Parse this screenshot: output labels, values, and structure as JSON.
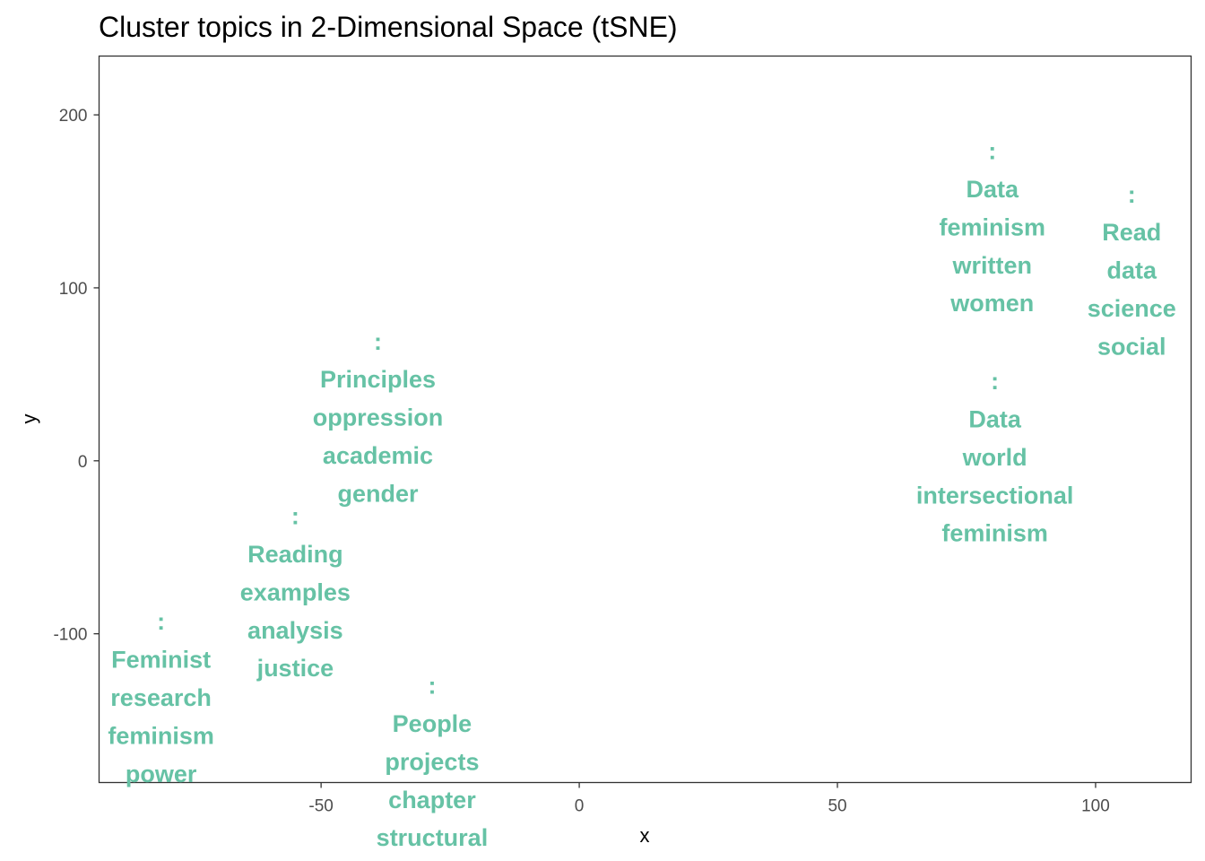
{
  "chart_data": {
    "type": "scatter",
    "title": "Cluster topics in 2-Dimensional Space (tSNE)",
    "xlabel": "x",
    "ylabel": "y",
    "xlim": [
      -93,
      118.5
    ],
    "ylim": [
      -186,
      234
    ],
    "x_ticks": [
      -50,
      0,
      50,
      100
    ],
    "x_tick_labels": [
      "-50",
      "0",
      "50",
      "100"
    ],
    "y_ticks": [
      -100,
      0,
      100,
      200
    ],
    "y_tick_labels": [
      "-100",
      "0",
      "100",
      "200"
    ],
    "grid": false,
    "legend": "none",
    "label_color": "#66c2a5",
    "points": [
      {
        "x": 80,
        "y": 135,
        "lines": [
          ":",
          "Data",
          "feminism",
          "written",
          "women"
        ]
      },
      {
        "x": 107,
        "y": 110,
        "lines": [
          ":",
          "Read",
          "data",
          "science",
          "social"
        ]
      },
      {
        "x": -39,
        "y": 25,
        "lines": [
          ":",
          "Principles",
          "oppression",
          "academic",
          "gender"
        ]
      },
      {
        "x": 80.5,
        "y": 2,
        "lines": [
          ":",
          "Data",
          "world",
          "intersectional",
          "feminism"
        ]
      },
      {
        "x": -55,
        "y": -76,
        "lines": [
          ":",
          "Reading",
          "examples",
          "analysis",
          "justice"
        ]
      },
      {
        "x": -81,
        "y": -137,
        "lines": [
          ":",
          "Feminist",
          "research",
          "feminism",
          "power"
        ]
      },
      {
        "x": -28.5,
        "y": -174,
        "lines": [
          ":",
          "People",
          "projects",
          "chapter",
          "structural"
        ]
      }
    ]
  }
}
